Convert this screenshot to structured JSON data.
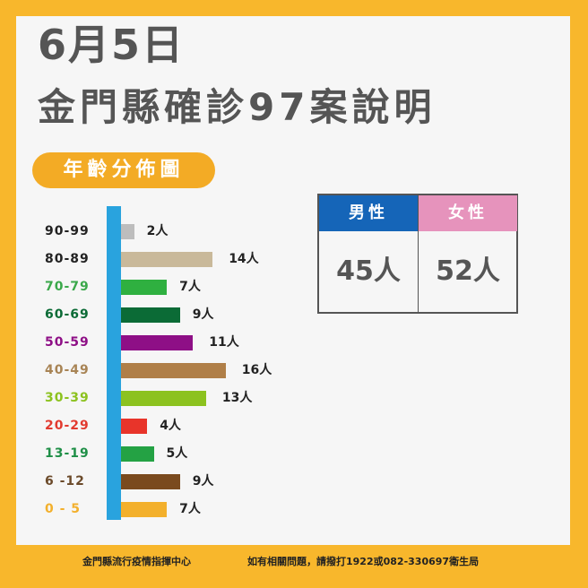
{
  "header": {
    "date": "6月5日",
    "title": "金門縣確診97案說明"
  },
  "badge": {
    "label": "年齡分佈圖",
    "color": "#f3ab25"
  },
  "gender_table": {
    "male": {
      "label": "男性",
      "value": "45人",
      "color": "#1565b8"
    },
    "female": {
      "label": "女性",
      "value": "52人",
      "color": "#e693bc"
    }
  },
  "footer": {
    "left": "金門縣流行疫情指揮中心",
    "right": "如有相關問題，請撥打1922或082-330697衛生局"
  },
  "chart_data": {
    "type": "bar",
    "orientation": "horizontal",
    "title": "年齡分佈圖",
    "categories": [
      "90-99",
      "80-89",
      "70-79",
      "60-69",
      "50-59",
      "40-49",
      "30-39",
      "20-29",
      "13-19",
      "6 -12",
      "0 - 5"
    ],
    "values": [
      2,
      14,
      7,
      9,
      11,
      16,
      13,
      4,
      5,
      9,
      7
    ],
    "value_labels": [
      "2人",
      "14人",
      "7人",
      "9人",
      "11人",
      "16人",
      "13人",
      "4人",
      "5人",
      "9人",
      "7人"
    ],
    "bar_colors": [
      "#bdbdbd",
      "#c9b99a",
      "#2fb040",
      "#0b6b36",
      "#8e0f86",
      "#b07f48",
      "#8cc21f",
      "#e8342a",
      "#24a244",
      "#7a4a1e",
      "#f3b02c"
    ],
    "label_colors": [
      "#222222",
      "#222222",
      "#3aa84a",
      "#0b6b36",
      "#8e0f86",
      "#a88455",
      "#8cc21f",
      "#e23a2f",
      "#1f8f47",
      "#6b4a2a",
      "#f3b02c"
    ],
    "axis_color": "#29a3de",
    "xlabel": "",
    "ylabel": "",
    "total": 97
  }
}
